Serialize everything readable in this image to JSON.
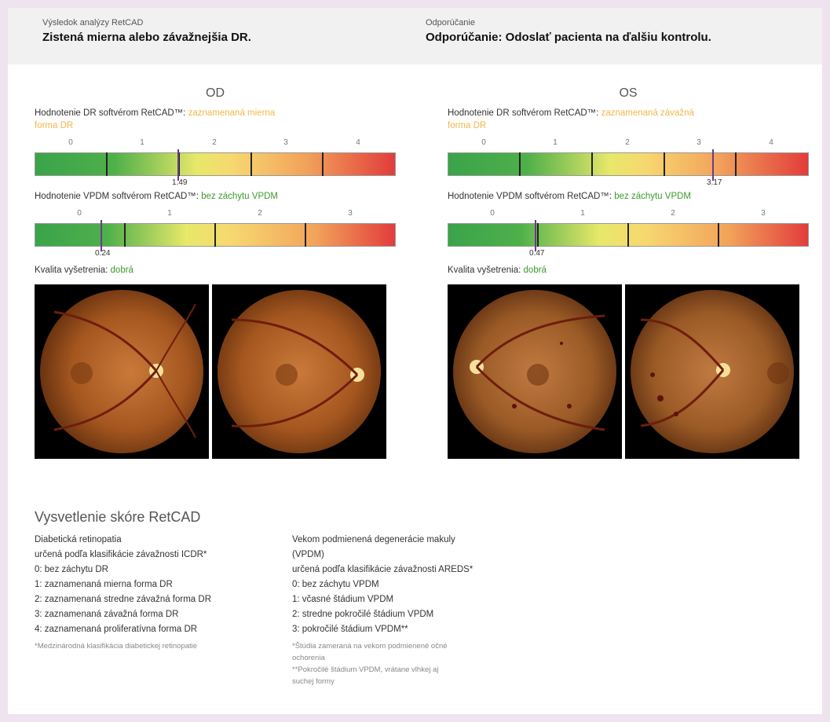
{
  "header": {
    "left_label": "Výsledok analýzy RetCAD",
    "left_text": "Zistená mierna alebo závažnejšia DR.",
    "right_label": "Odporúčanie",
    "right_text": "Odporúčanie: Odoslať pacienta na ďalšiu kontrolu."
  },
  "od": {
    "title": "OD",
    "dr_prefix": "Hodnotenie DR softvérom RetCAD™:",
    "dr_status_line1": "zaznamenaná mierna",
    "dr_status_line2": "forma DR",
    "dr_scale_labels": [
      "0",
      "1",
      "2",
      "3",
      "4"
    ],
    "dr_score": 1.49,
    "dr_score_label": "1.49",
    "vpdm_prefix": "Hodnotenie VPDM softvérom RetCAD™:",
    "vpdm_status": "bez záchytu VPDM",
    "vpdm_scale_labels": [
      "0",
      "1",
      "2",
      "3"
    ],
    "vpdm_score": 0.24,
    "vpdm_score_label": "0.24",
    "quality_prefix": "Kvalita vyšetrenia:",
    "quality_value": "dobrá"
  },
  "os": {
    "title": "OS",
    "dr_prefix": "Hodnotenie DR softvérom RetCAD™:",
    "dr_status_line1": "zaznamenaná závažná",
    "dr_status_line2": "forma DR",
    "dr_scale_labels": [
      "0",
      "1",
      "2",
      "3",
      "4"
    ],
    "dr_score": 3.17,
    "dr_score_label": "3.17",
    "vpdm_prefix": "Hodnotenie VPDM softvérom RetCAD™:",
    "vpdm_status": "bez záchytu VPDM",
    "vpdm_scale_labels": [
      "0",
      "1",
      "2",
      "3"
    ],
    "vpdm_score": 0.47,
    "vpdm_score_label": "0.47",
    "quality_prefix": "Kvalita vyšetrenia:",
    "quality_value": "dobrá"
  },
  "legend": {
    "title": "Vysvetlenie skóre RetCAD",
    "dr_heading1": "Diabetická retinopatia",
    "dr_heading2": "určená podľa klasifikácie závažnosti ICDR*",
    "dr_items": [
      "0: bez záchytu DR",
      "1: zaznamenaná mierna forma DR",
      "2: zaznamenaná stredne závažná forma DR",
      "3: zaznamenaná závažná forma DR",
      "4: zaznamenaná proliferatívna forma DR"
    ],
    "dr_note": "*Medzinárodná klasifikácia diabetickej retinopatie",
    "vpdm_heading1": "Vekom podmienená degenerácie makuly",
    "vpdm_heading2": "(VPDM)",
    "vpdm_heading3": "určená podľa klasifikácie závažnosti AREDS*",
    "vpdm_items": [
      "0: bez záchytu VPDM",
      "1: včasné štádium VPDM",
      "2: stredne pokročilé štádium VPDM",
      "3: pokročilé štádium VPDM**"
    ],
    "vpdm_note1": "*Štúdia zameraná na vekom podmienené očné",
    "vpdm_note2": "ochorenia",
    "vpdm_note3": "**Pokročilé štádium VPDM, vrátane vlhkej aj",
    "vpdm_note4": "suchej formy"
  },
  "colors": {
    "status_yellow": "#f0b84a",
    "status_green": "#3c9a2c",
    "marker": "#6a3b8d"
  }
}
